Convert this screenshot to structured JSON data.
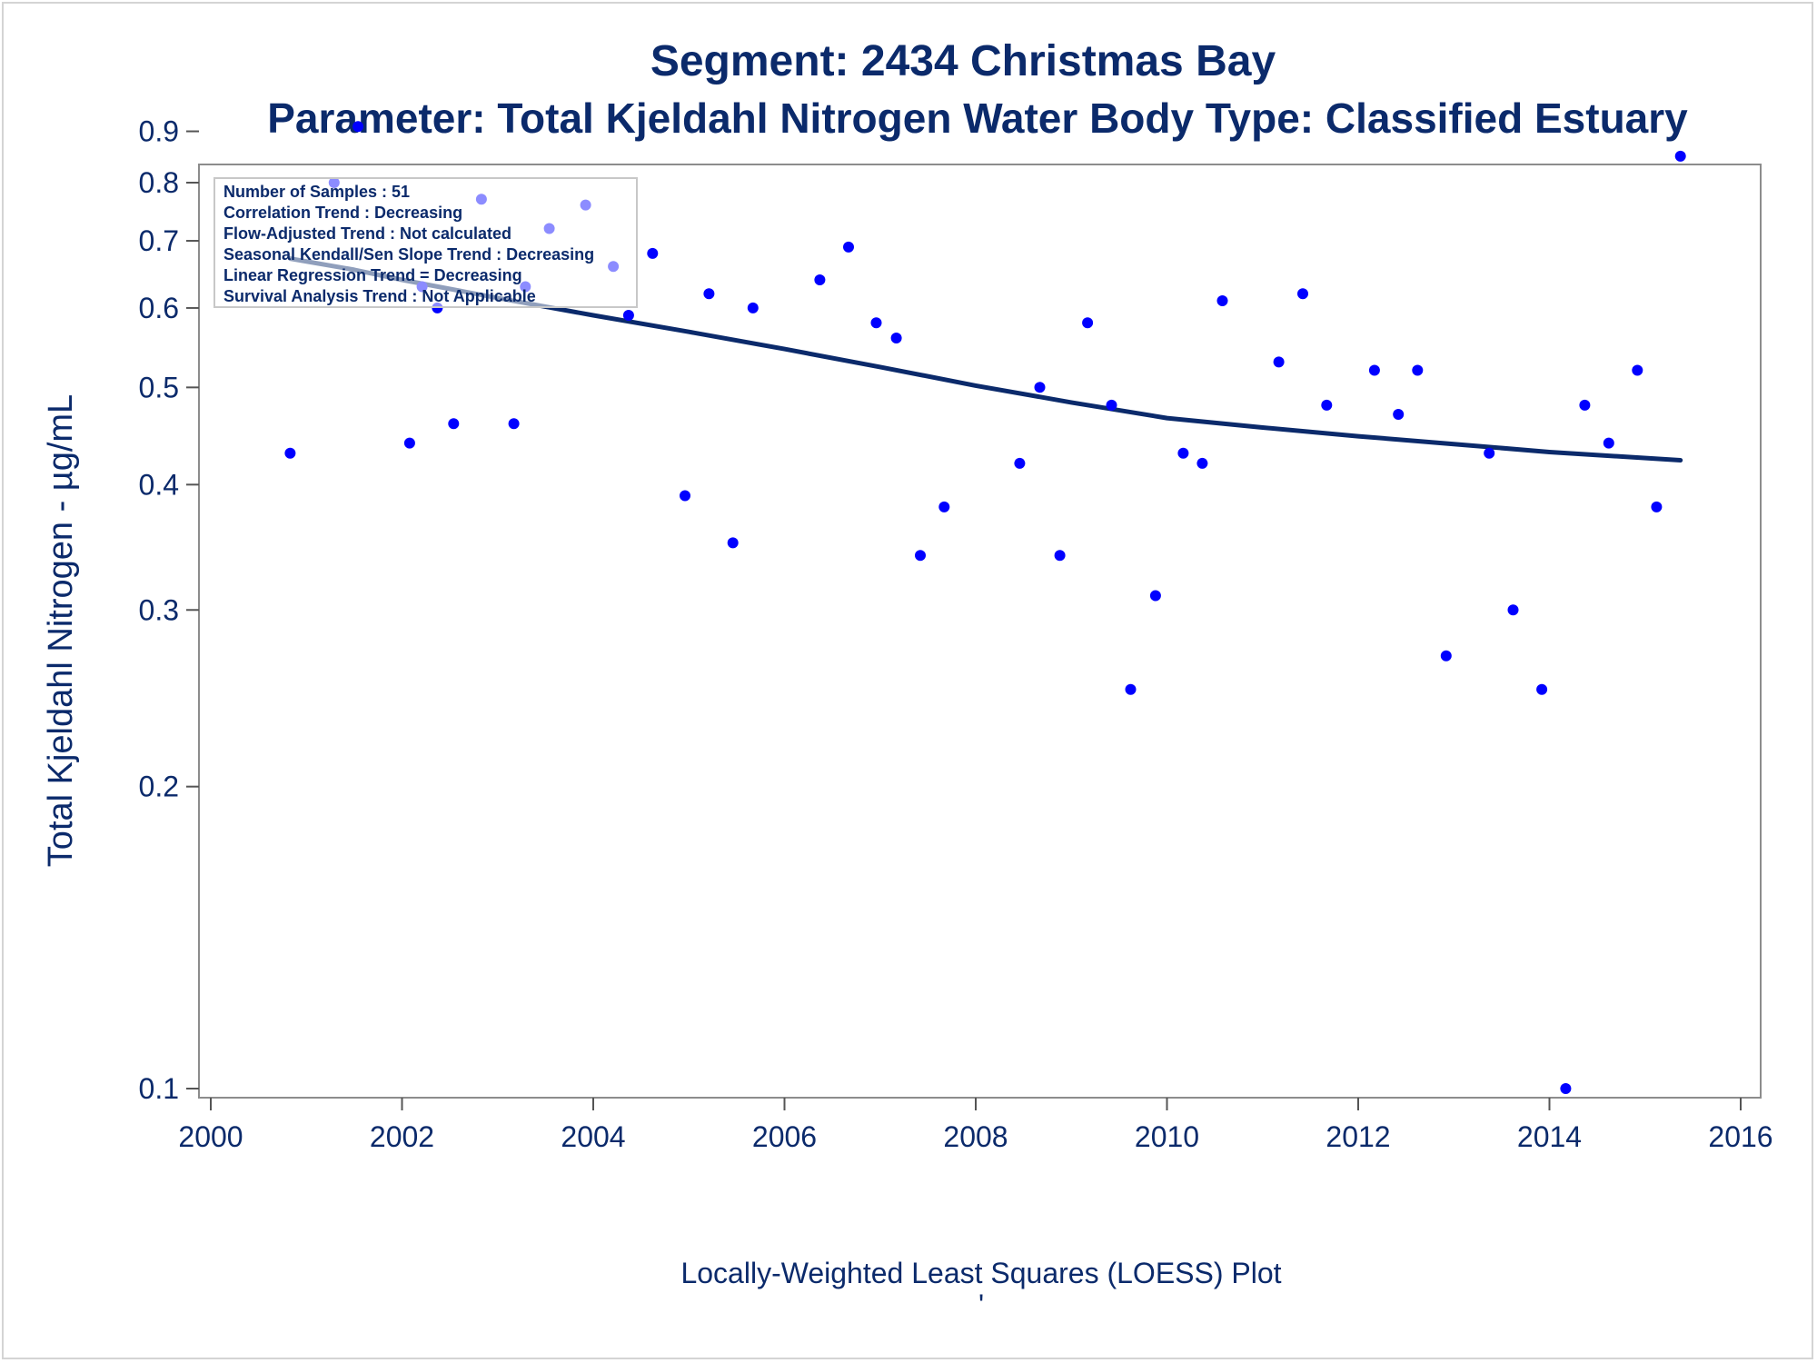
{
  "chart_data": {
    "type": "scatter",
    "title": "Segment: 2434  Christmas Bay",
    "subtitle": "Parameter: Total Kjeldahl Nitrogen   Water Body Type: Classified Estuary",
    "xlabel": "",
    "ylabel": "Total Kjeldahl Nitrogen -  µg/mL",
    "footnote": "Locally-Weighted Least Squares (LOESS) Plot",
    "footnote_mark": "'",
    "xlim": [
      2000,
      2016
    ],
    "ylim": [
      0.1,
      0.92
    ],
    "y_scale": "log",
    "x_ticks": [
      2000,
      2002,
      2004,
      2006,
      2008,
      2010,
      2012,
      2014,
      2016
    ],
    "y_ticks": [
      0.1,
      0.2,
      0.3,
      0.4,
      0.5,
      0.6,
      0.7,
      0.8,
      0.9
    ],
    "y_tick_labels": [
      "0.1",
      "0.2",
      "0.3",
      "0.4",
      "0.5",
      "0.6",
      "0.7",
      "0.8",
      "0.9"
    ],
    "grid": false,
    "legend": "top-left",
    "inset_text": [
      "Number of Samples : 51",
      "Correlation Trend : Decreasing",
      "Flow-Adjusted Trend : Not calculated",
      "Seasonal Kendall/Sen Slope Trend : Decreasing",
      "Linear Regression Trend = Decreasing",
      "Survival Analysis Trend : Not Applicable"
    ],
    "series": [
      {
        "kind": "points",
        "color": "#0000ff",
        "x": [
          2000.83,
          2001.29,
          2001.54,
          2002.08,
          2002.21,
          2002.37,
          2002.54,
          2002.83,
          2003.17,
          2003.29,
          2003.54,
          2003.92,
          2004.21,
          2004.37,
          2004.62,
          2004.96,
          2005.21,
          2005.46,
          2005.67,
          2006.37,
          2006.67,
          2006.96,
          2007.17,
          2007.42,
          2007.67,
          2008.46,
          2008.67,
          2008.88,
          2009.17,
          2009.42,
          2009.62,
          2009.88,
          2010.17,
          2010.37,
          2010.58,
          2011.17,
          2011.42,
          2011.67,
          2012.17,
          2012.42,
          2012.62,
          2012.92,
          2013.37,
          2013.62,
          2013.92,
          2014.17,
          2014.37,
          2014.62,
          2014.92,
          2015.12,
          2015.37
        ],
        "y": [
          0.43,
          0.8,
          0.91,
          0.44,
          0.63,
          0.6,
          0.46,
          0.77,
          0.46,
          0.63,
          0.72,
          0.76,
          0.66,
          0.59,
          0.68,
          0.39,
          0.62,
          0.35,
          0.6,
          0.64,
          0.69,
          0.58,
          0.56,
          0.34,
          0.38,
          0.42,
          0.5,
          0.34,
          0.58,
          0.48,
          0.25,
          0.31,
          0.43,
          0.42,
          0.61,
          0.53,
          0.62,
          0.48,
          0.52,
          0.47,
          0.52,
          0.27,
          0.43,
          0.3,
          0.25,
          0.1,
          0.48,
          0.44,
          0.52,
          0.38,
          0.85
        ]
      },
      {
        "kind": "line",
        "color": "#0b2a6b",
        "x": [
          2000.83,
          2001.5,
          2002,
          2003,
          2004,
          2005,
          2006,
          2007,
          2008,
          2009,
          2010,
          2011,
          2012,
          2013,
          2014,
          2015.37
        ],
        "y": [
          0.672,
          0.655,
          0.64,
          0.614,
          0.59,
          0.568,
          0.546,
          0.524,
          0.502,
          0.483,
          0.466,
          0.456,
          0.447,
          0.439,
          0.431,
          0.423
        ]
      }
    ]
  }
}
